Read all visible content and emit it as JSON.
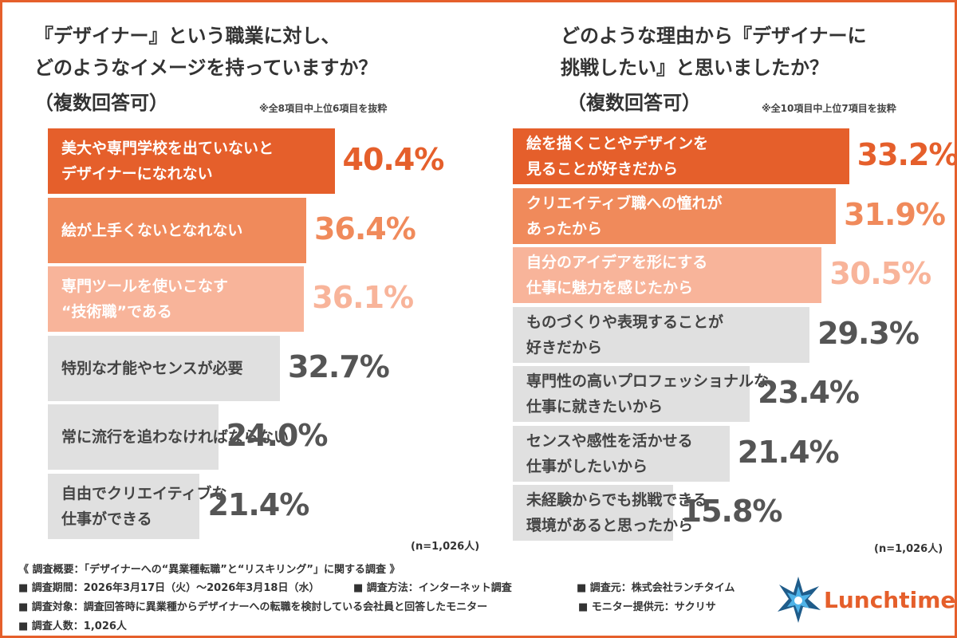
{
  "chart_data": [
    {
      "type": "bar",
      "title": [
        "『デザイナー』という職業に対し、",
        "どのようなイメージを持っていますか？"
      ],
      "subtitle": "（複数回答可）",
      "note": "※全8項目中上位6項目を抜粋",
      "categories": [
        "美大や専門学校を出ていないと\nデザイナーになれない",
        "絵が上手くないとなれない",
        "専門ツールを使いこなす\n“技術職”である",
        "特別な才能やセンスが必要",
        "常に流行を追わなければならない",
        "自由でクリエイティブな\n仕事ができる"
      ],
      "values": [
        40.4,
        36.4,
        36.1,
        32.7,
        24.0,
        21.4
      ],
      "value_labels": [
        "40.4%",
        "36.4%",
        "36.1%",
        "32.7%",
        "24.0%",
        "21.4%"
      ],
      "colors": [
        "#e55f2b",
        "#f08a5b",
        "#f8b49a",
        "#e0e0e0",
        "#e0e0e0",
        "#e0e0e0"
      ],
      "value_label_colors": [
        "#e55f2b",
        "#f08a5b",
        "#f8b49a",
        "#555555",
        "#555555",
        "#555555"
      ],
      "sample": "(n=1,026人)"
    },
    {
      "type": "bar",
      "title": [
        "どのような理由から『デザイナーに",
        "挑戦したい』と思いましたか？"
      ],
      "subtitle": "（複数回答可）",
      "note": "※全10項目中上位7項目を抜粋",
      "categories": [
        "絵を描くことやデザインを\n見ることが好きだから",
        "クリエイティブ職への憧れが\nあったから",
        "自分のアイデアを形にする\n仕事に魅力を感じたから",
        "ものづくりや表現することが\n好きだから",
        "専門性の高いプロフェッショナルな\n仕事に就きたいから",
        "センスや感性を活かせる\n仕事がしたいから",
        "未経験からでも挑戦できる\n環境があると思ったから"
      ],
      "values": [
        33.2,
        31.9,
        30.5,
        29.3,
        23.4,
        21.4,
        15.8
      ],
      "value_labels": [
        "33.2%",
        "31.9%",
        "30.5%",
        "29.3%",
        "23.4%",
        "21.4%",
        "15.8%"
      ],
      "colors": [
        "#e55f2b",
        "#f08a5b",
        "#f8b49a",
        "#e0e0e0",
        "#e0e0e0",
        "#e0e0e0",
        "#e0e0e0"
      ],
      "value_label_colors": [
        "#e55f2b",
        "#f08a5b",
        "#f8b49a",
        "#555555",
        "#555555",
        "#555555",
        "#555555"
      ],
      "sample": "(n=1,026人)"
    }
  ],
  "footer": {
    "heading": "《 調査概要：「デザイナーへの“異業種転職”と“リスキリング”」に関する調査 》",
    "items": [
      "■ 調査期間：2026年3月17日（火）～2026年3月18日（水）",
      "■ 調査方法：インターネット調査",
      "■ 調査元：株式会社ランチタイム",
      "■ 調査対象：調査回答時に異業種からデザイナーへの転職を検討している会社員と回答したモニター",
      "■ モニター提供元：サクリサ",
      "■ 調査人数：1,026人"
    ],
    "logo": "Lunchtime"
  }
}
